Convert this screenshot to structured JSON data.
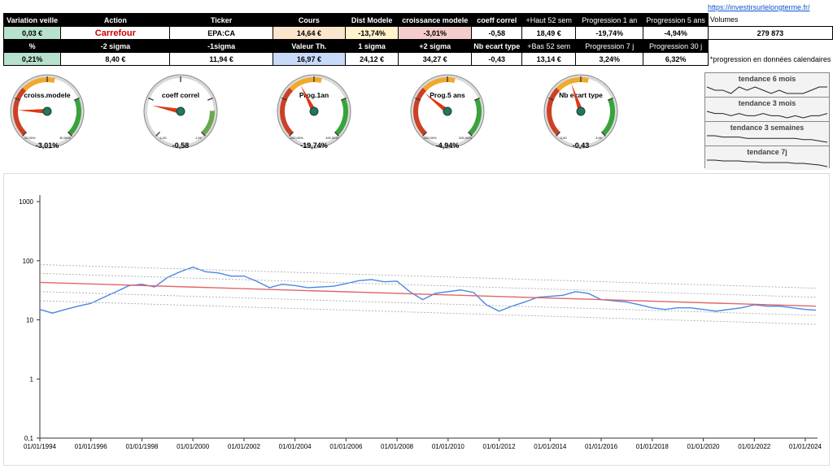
{
  "link": "https://investirsurlelongterme.fr/",
  "table": {
    "header1": [
      "Variation veille",
      "Action",
      "Ticker",
      "Cours",
      "Dist Modele",
      "croissance modele",
      "coeff correl",
      "+Haut 52 sem",
      "Progression 1 an",
      "Progression 5 ans",
      "Volumes"
    ],
    "values1": [
      "0,03 €",
      "Carrefour",
      "EPA:CA",
      "14,64 €",
      "-13,74%",
      "-3,01%",
      "-0,58",
      "18,49 €",
      "-19,74%",
      "-4,94%",
      "279 873"
    ],
    "header2": [
      "%",
      "-2 sigma",
      "-1sigma",
      "Valeur Th.",
      "1 sigma",
      "+2 sigma",
      "Nb ecart type",
      "+Bas 52 sem",
      "Progression 7 j",
      "Progression 30 j"
    ],
    "values2": [
      "0,21%",
      "8,40 €",
      "11,94 €",
      "16,97 €",
      "24,12 €",
      "34,27 €",
      "-0,43",
      "13,14 €",
      "3,24%",
      "6,32%",
      "*progression en données calendaires"
    ]
  },
  "gauges": [
    {
      "label": "croiss.modele",
      "value": "-3,01%",
      "min": "-10,00%",
      "max": "30,00%",
      "fraction": 0.175
    },
    {
      "label": "coeff correl",
      "value": "-0,58",
      "min": "-1,00",
      "max": "1,00",
      "fraction": 0.21
    },
    {
      "label": "Prog.1an",
      "value": "-19,74%",
      "min": "-100,00%",
      "max": "100,00%",
      "fraction": 0.4
    },
    {
      "label": "Prog.5 ans",
      "value": "-4,94%",
      "min": "-100,00%",
      "max": "200,00%",
      "fraction": 0.31
    },
    {
      "label": "Nb ecart type",
      "value": "-0,43",
      "min": "-3,00",
      "max": "3,00",
      "fraction": 0.43
    }
  ],
  "trends": [
    {
      "label": "tendance 6 mois",
      "values": [
        13,
        12,
        12,
        11,
        13,
        12,
        13,
        12,
        11,
        12,
        11,
        11,
        11,
        12,
        13,
        13
      ]
    },
    {
      "label": "tendance 3 mois",
      "values": [
        14,
        13,
        13,
        12,
        13,
        12,
        12,
        13,
        12,
        12,
        11,
        12,
        11,
        12,
        12,
        13
      ]
    },
    {
      "label": "tendance 3 semaines",
      "values": [
        14,
        14,
        13,
        13,
        13,
        12,
        12,
        12,
        12,
        12,
        12,
        12,
        11,
        11,
        10,
        9
      ]
    },
    {
      "label": "tendance 7j",
      "values": [
        14,
        14,
        13,
        13,
        13,
        12,
        12,
        11,
        11,
        11,
        11,
        10,
        10,
        9,
        8,
        6
      ]
    }
  ],
  "chart_data": {
    "type": "line",
    "yscale": "log",
    "ylim": [
      0.1,
      1000
    ],
    "yticks": [
      "0,1",
      "1",
      "10",
      "100",
      "1000"
    ],
    "xlim": [
      "1994-01-01",
      "2024-06-01"
    ],
    "xticks": [
      "01/01/1994",
      "01/01/1996",
      "01/01/1998",
      "01/01/2000",
      "01/01/2002",
      "01/01/2004",
      "01/01/2006",
      "01/01/2008",
      "01/01/2010",
      "01/01/2012",
      "01/01/2014",
      "01/01/2016",
      "01/01/2018",
      "01/01/2020",
      "01/01/2022",
      "01/01/2024"
    ],
    "series": [
      {
        "color": "#4a86e8",
        "points": [
          [
            "1994-01-01",
            15
          ],
          [
            "1994-07-01",
            13
          ],
          [
            "1995-01-01",
            15
          ],
          [
            "1995-07-01",
            17
          ],
          [
            "1996-01-01",
            19
          ],
          [
            "1996-07-01",
            24
          ],
          [
            "1997-01-01",
            30
          ],
          [
            "1997-07-01",
            38
          ],
          [
            "1998-01-01",
            40
          ],
          [
            "1998-07-01",
            36
          ],
          [
            "1999-01-01",
            52
          ],
          [
            "1999-07-01",
            65
          ],
          [
            "2000-01-01",
            78
          ],
          [
            "2000-07-01",
            65
          ],
          [
            "2001-01-01",
            62
          ],
          [
            "2001-07-01",
            55
          ],
          [
            "2002-01-01",
            55
          ],
          [
            "2002-07-01",
            45
          ],
          [
            "2003-01-01",
            35
          ],
          [
            "2003-07-01",
            40
          ],
          [
            "2004-01-01",
            38
          ],
          [
            "2004-07-01",
            35
          ],
          [
            "2005-01-01",
            36
          ],
          [
            "2005-07-01",
            37
          ],
          [
            "2006-01-01",
            41
          ],
          [
            "2006-07-01",
            46
          ],
          [
            "2007-01-01",
            48
          ],
          [
            "2007-07-01",
            44
          ],
          [
            "2008-01-01",
            45
          ],
          [
            "2008-07-01",
            30
          ],
          [
            "2009-01-01",
            22
          ],
          [
            "2009-07-01",
            28
          ],
          [
            "2010-01-01",
            30
          ],
          [
            "2010-07-01",
            32
          ],
          [
            "2011-01-01",
            29
          ],
          [
            "2011-07-01",
            18
          ],
          [
            "2012-01-01",
            14
          ],
          [
            "2012-07-01",
            17
          ],
          [
            "2013-01-01",
            20
          ],
          [
            "2013-07-01",
            24
          ],
          [
            "2014-01-01",
            25
          ],
          [
            "2014-07-01",
            26
          ],
          [
            "2015-01-01",
            30
          ],
          [
            "2015-07-01",
            28
          ],
          [
            "2016-01-01",
            22
          ],
          [
            "2016-07-01",
            21
          ],
          [
            "2017-01-01",
            20
          ],
          [
            "2017-07-01",
            18
          ],
          [
            "2018-01-01",
            16
          ],
          [
            "2018-07-01",
            15
          ],
          [
            "2019-01-01",
            16
          ],
          [
            "2019-07-01",
            16
          ],
          [
            "2020-01-01",
            15
          ],
          [
            "2020-07-01",
            14
          ],
          [
            "2021-01-01",
            15
          ],
          [
            "2021-07-01",
            16
          ],
          [
            "2022-01-01",
            18
          ],
          [
            "2022-07-01",
            17
          ],
          [
            "2023-01-01",
            17
          ],
          [
            "2023-07-01",
            16
          ],
          [
            "2024-01-01",
            15
          ],
          [
            "2024-06-01",
            14.6
          ]
        ]
      },
      {
        "color": "#e06666",
        "points": [
          [
            "1994-01-01",
            43
          ],
          [
            "2024-06-01",
            17
          ]
        ]
      },
      {
        "color": "#aaaaaa",
        "dashed": true,
        "points": [
          [
            "1994-01-01",
            86
          ],
          [
            "2024-06-01",
            34.3
          ]
        ]
      },
      {
        "color": "#aaaaaa",
        "dashed": true,
        "points": [
          [
            "1994-01-01",
            61
          ],
          [
            "2024-06-01",
            24.1
          ]
        ]
      },
      {
        "color": "#aaaaaa",
        "dashed": true,
        "points": [
          [
            "1994-01-01",
            30
          ],
          [
            "2024-06-01",
            11.9
          ]
        ]
      },
      {
        "color": "#aaaaaa",
        "dashed": true,
        "points": [
          [
            "1994-01-01",
            21
          ],
          [
            "2024-06-01",
            8.4
          ]
        ]
      }
    ]
  }
}
